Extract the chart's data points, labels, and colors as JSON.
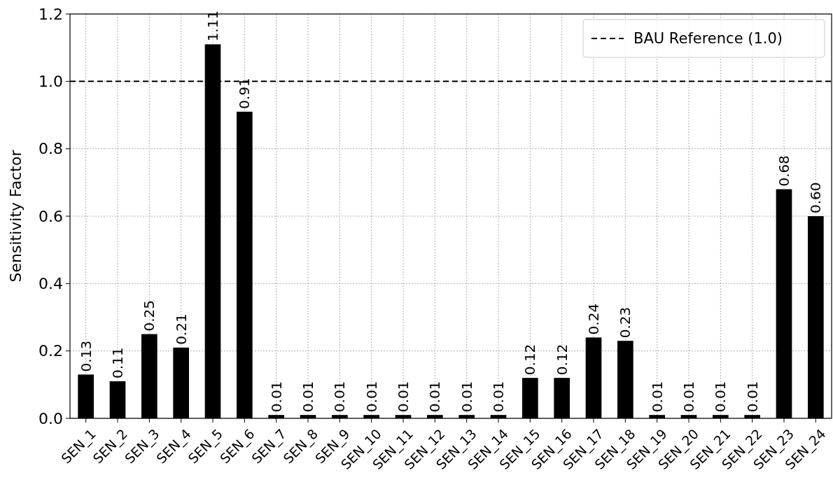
{
  "chart_data": {
    "type": "bar",
    "ylabel": "Sensitivity Factor",
    "categories": [
      "SEN_1",
      "SEN_2",
      "SEN_3",
      "SEN_4",
      "SEN_5",
      "SEN_6",
      "SEN_7",
      "SEN_8",
      "SEN_9",
      "SEN_10",
      "SEN_11",
      "SEN_12",
      "SEN_13",
      "SEN_14",
      "SEN_15",
      "SEN_16",
      "SEN_17",
      "SEN_18",
      "SEN_19",
      "SEN_20",
      "SEN_21",
      "SEN_22",
      "SEN_23",
      "SEN_24"
    ],
    "values": [
      0.13,
      0.11,
      0.25,
      0.21,
      1.11,
      0.91,
      0.01,
      0.01,
      0.01,
      0.01,
      0.01,
      0.01,
      0.01,
      0.01,
      0.12,
      0.12,
      0.24,
      0.23,
      0.01,
      0.01,
      0.01,
      0.01,
      0.68,
      0.6
    ],
    "value_labels": [
      "0.13",
      "0.11",
      "0.25",
      "0.21",
      "1.11",
      "0.91",
      "0.01",
      "0.01",
      "0.01",
      "0.01",
      "0.01",
      "0.01",
      "0.01",
      "0.01",
      "0.12",
      "0.12",
      "0.24",
      "0.23",
      "0.01",
      "0.01",
      "0.01",
      "0.01",
      "0.68",
      "0.60"
    ],
    "color": "#000000",
    "ylim": [
      0,
      1.2
    ],
    "yticks": [
      {
        "value": 0,
        "label": "0.0"
      },
      0.2,
      0.4,
      0.6,
      0.8,
      {
        "value": 1,
        "label": "1.0"
      },
      {
        "value": 1.2,
        "label": "1.2"
      }
    ],
    "ref_lines": [
      {
        "axis": "y",
        "value": 1,
        "label": "BAU Reference (1.0)",
        "color": "#000000",
        "line_style": "dashed"
      }
    ],
    "grid": true,
    "legend": "top right"
  }
}
